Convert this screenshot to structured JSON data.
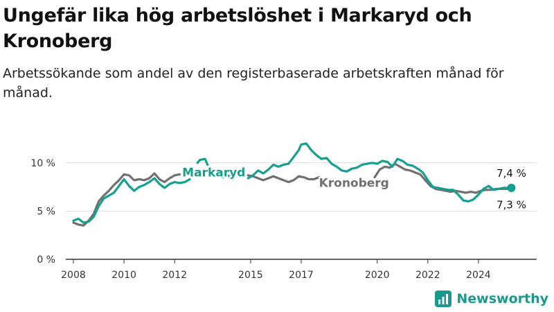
{
  "title": "Ungefär lika hög arbetslöshet i Markaryd och Kronoberg",
  "subtitle": "Arbetssökande som andel av den registerbaserade arbetskraften månad för månad.",
  "brand": "Newsworthy",
  "colors": {
    "markaryd": "#13a08f",
    "kronoberg": "#707070",
    "grid": "#dcdcdc",
    "axis": "#333333"
  },
  "chart_data": {
    "type": "line",
    "title": "Ungefär lika hög arbetslöshet i Markaryd och Kronoberg",
    "subtitle": "Arbetssökande som andel av den registerbaserade arbetskraften månad för månad.",
    "xlabel": "",
    "ylabel": "",
    "ylim": [
      0,
      12.5
    ],
    "xlim": [
      2007.7,
      2026.3
    ],
    "y_ticks": [
      0,
      5,
      10
    ],
    "y_tick_labels": [
      "0 %",
      "5 %",
      "10 %"
    ],
    "x_ticks": [
      2008,
      2010,
      2012,
      2015,
      2017,
      2020,
      2022,
      2024
    ],
    "x_tick_labels": [
      "2008",
      "2010",
      "2012",
      "2015",
      "2017",
      "2020",
      "2022",
      "2024"
    ],
    "grid": true,
    "legend": "inline labels",
    "series": [
      {
        "name": "Markaryd",
        "end_label": "7,4 %",
        "points": [
          [
            2008.0,
            4.0
          ],
          [
            2008.2,
            4.2
          ],
          [
            2008.4,
            3.8
          ],
          [
            2008.6,
            3.9
          ],
          [
            2008.8,
            4.4
          ],
          [
            2009.0,
            5.5
          ],
          [
            2009.2,
            6.3
          ],
          [
            2009.4,
            6.6
          ],
          [
            2009.6,
            6.9
          ],
          [
            2009.8,
            7.6
          ],
          [
            2010.0,
            8.3
          ],
          [
            2010.2,
            7.6
          ],
          [
            2010.4,
            7.1
          ],
          [
            2010.6,
            7.5
          ],
          [
            2010.8,
            7.7
          ],
          [
            2011.0,
            8.0
          ],
          [
            2011.2,
            8.4
          ],
          [
            2011.4,
            7.8
          ],
          [
            2011.6,
            7.4
          ],
          [
            2011.8,
            7.8
          ],
          [
            2012.0,
            8.0
          ],
          [
            2012.2,
            7.9
          ],
          [
            2012.4,
            8.0
          ],
          [
            2012.6,
            8.3
          ],
          null,
          [
            2012.9,
            10.0
          ],
          [
            2013.0,
            10.3
          ],
          [
            2013.2,
            10.4
          ],
          [
            2013.3,
            9.8
          ],
          null,
          [
            2013.9,
            8.5
          ],
          [
            2014.1,
            8.7
          ],
          [
            2014.3,
            8.3
          ],
          null,
          [
            2014.9,
            8.4
          ],
          [
            2015.1,
            8.7
          ],
          [
            2015.3,
            9.2
          ],
          [
            2015.5,
            8.9
          ],
          [
            2015.7,
            9.3
          ],
          [
            2015.9,
            9.8
          ],
          [
            2016.1,
            9.6
          ],
          [
            2016.3,
            9.8
          ],
          [
            2016.5,
            9.9
          ],
          [
            2016.7,
            10.6
          ],
          [
            2016.9,
            11.3
          ],
          [
            2017.0,
            11.9
          ],
          [
            2017.2,
            12.0
          ],
          [
            2017.4,
            11.3
          ],
          [
            2017.6,
            10.8
          ],
          [
            2017.8,
            10.4
          ],
          [
            2018.0,
            10.5
          ],
          [
            2018.2,
            9.9
          ],
          [
            2018.4,
            9.6
          ],
          [
            2018.6,
            9.2
          ],
          [
            2018.8,
            9.1
          ],
          [
            2019.0,
            9.4
          ],
          [
            2019.2,
            9.5
          ],
          [
            2019.4,
            9.8
          ],
          [
            2019.6,
            9.9
          ],
          [
            2019.8,
            10.0
          ],
          [
            2020.0,
            9.9
          ],
          [
            2020.2,
            10.2
          ],
          [
            2020.4,
            10.1
          ],
          [
            2020.6,
            9.6
          ],
          [
            2020.8,
            10.4
          ],
          [
            2021.0,
            10.2
          ],
          [
            2021.2,
            9.8
          ],
          [
            2021.4,
            9.7
          ],
          [
            2021.6,
            9.4
          ],
          [
            2021.8,
            9.0
          ],
          [
            2022.0,
            8.2
          ],
          [
            2022.2,
            7.5
          ],
          [
            2022.4,
            7.4
          ],
          [
            2022.6,
            7.3
          ],
          [
            2022.8,
            7.2
          ],
          [
            2023.0,
            7.2
          ],
          [
            2023.2,
            6.7
          ],
          [
            2023.4,
            6.1
          ],
          [
            2023.6,
            6.0
          ],
          [
            2023.8,
            6.2
          ],
          [
            2024.0,
            6.7
          ],
          [
            2024.2,
            7.3
          ],
          [
            2024.4,
            7.6
          ],
          [
            2024.6,
            7.2
          ],
          [
            2024.8,
            7.3
          ],
          [
            2025.0,
            7.4
          ],
          [
            2025.3,
            7.4
          ]
        ]
      },
      {
        "name": "Kronoberg",
        "end_label": "7,3 %",
        "points": [
          [
            2008.0,
            3.8
          ],
          [
            2008.2,
            3.6
          ],
          [
            2008.4,
            3.5
          ],
          [
            2008.6,
            4.0
          ],
          [
            2008.8,
            4.7
          ],
          [
            2009.0,
            6.0
          ],
          [
            2009.2,
            6.6
          ],
          [
            2009.4,
            7.1
          ],
          [
            2009.6,
            7.7
          ],
          [
            2009.8,
            8.2
          ],
          [
            2010.0,
            8.8
          ],
          [
            2010.2,
            8.7
          ],
          [
            2010.4,
            8.2
          ],
          [
            2010.6,
            8.3
          ],
          [
            2010.8,
            8.2
          ],
          [
            2011.0,
            8.4
          ],
          [
            2011.2,
            8.9
          ],
          [
            2011.4,
            8.3
          ],
          [
            2011.6,
            8.0
          ],
          [
            2011.8,
            8.4
          ],
          [
            2012.0,
            8.7
          ],
          [
            2012.2,
            8.8
          ],
          null,
          [
            2014.9,
            8.7
          ],
          [
            2015.1,
            8.6
          ],
          [
            2015.3,
            8.4
          ],
          [
            2015.5,
            8.2
          ],
          [
            2015.7,
            8.4
          ],
          [
            2015.9,
            8.6
          ],
          [
            2016.1,
            8.4
          ],
          [
            2016.3,
            8.2
          ],
          [
            2016.5,
            8.0
          ],
          [
            2016.7,
            8.2
          ],
          [
            2016.9,
            8.6
          ],
          [
            2017.1,
            8.5
          ],
          [
            2017.3,
            8.3
          ],
          [
            2017.5,
            8.3
          ],
          [
            2017.7,
            8.5
          ],
          null,
          [
            2019.9,
            8.5
          ],
          [
            2020.1,
            9.3
          ],
          [
            2020.3,
            9.6
          ],
          [
            2020.5,
            9.5
          ],
          [
            2020.7,
            9.9
          ],
          [
            2020.9,
            9.6
          ],
          [
            2021.1,
            9.3
          ],
          [
            2021.3,
            9.2
          ],
          [
            2021.5,
            9.0
          ],
          [
            2021.7,
            8.8
          ],
          [
            2021.9,
            8.2
          ],
          [
            2022.1,
            7.6
          ],
          [
            2022.3,
            7.3
          ],
          [
            2022.5,
            7.2
          ],
          [
            2022.7,
            7.1
          ],
          [
            2022.9,
            7.0
          ],
          [
            2023.1,
            7.1
          ],
          [
            2023.3,
            7.0
          ],
          [
            2023.5,
            6.9
          ],
          [
            2023.7,
            7.0
          ],
          [
            2023.9,
            6.9
          ],
          [
            2024.1,
            7.1
          ],
          [
            2024.3,
            7.2
          ],
          [
            2024.5,
            7.2
          ],
          [
            2024.7,
            7.3
          ],
          [
            2025.0,
            7.3
          ],
          [
            2025.3,
            7.3
          ]
        ]
      }
    ],
    "inline_labels": [
      {
        "series": "Markaryd",
        "text": "Markaryd",
        "anchor_x": 2012.3,
        "anchor_y": 8.6
      },
      {
        "series": "Kronoberg",
        "text": "Kronoberg",
        "anchor_x": 2017.7,
        "anchor_y": 7.5
      }
    ]
  }
}
